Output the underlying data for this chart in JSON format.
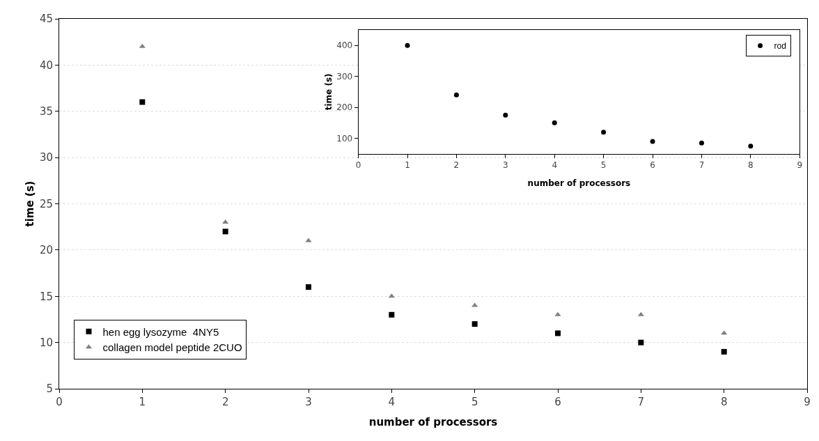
{
  "chart_data": [
    {
      "type": "scatter",
      "xlabel": "number of processors",
      "ylabel": "time (s)",
      "x": [
        1,
        2,
        3,
        4,
        5,
        6,
        7,
        8
      ],
      "series": [
        {
          "name": "hen egg lysozyme  4NY5",
          "color": "#000000",
          "marker": "square",
          "values": [
            36,
            22,
            16,
            13,
            12,
            11,
            10,
            9
          ]
        },
        {
          "name": "collagen model peptide 2CUO",
          "color": "#808080",
          "marker": "triangle",
          "values": [
            42,
            23,
            21,
            15,
            14,
            13,
            13,
            11
          ]
        }
      ],
      "xlim": [
        0,
        9
      ],
      "xticks": [
        0,
        1,
        2,
        3,
        4,
        5,
        6,
        7,
        8,
        9
      ],
      "ylim": [
        5,
        45
      ],
      "yticks": [
        5,
        10,
        15,
        20,
        25,
        30,
        35,
        40,
        45
      ],
      "grid": "y",
      "legend": "bottom left"
    },
    {
      "type": "scatter",
      "xlabel": "number of processors",
      "ylabel": "time (s)",
      "x": [
        1,
        2,
        3,
        4,
        5,
        6,
        7,
        8
      ],
      "series": [
        {
          "name": "rod",
          "color": "#000000",
          "marker": "circle",
          "values": [
            400,
            240,
            175,
            150,
            120,
            90,
            85,
            75
          ]
        }
      ],
      "xlim": [
        0,
        9
      ],
      "xticks": [
        0,
        1,
        2,
        3,
        4,
        5,
        6,
        7,
        8,
        9
      ],
      "ylim": [
        50,
        450
      ],
      "yticks": [
        100,
        200,
        300,
        400
      ],
      "legend": "top right"
    }
  ]
}
